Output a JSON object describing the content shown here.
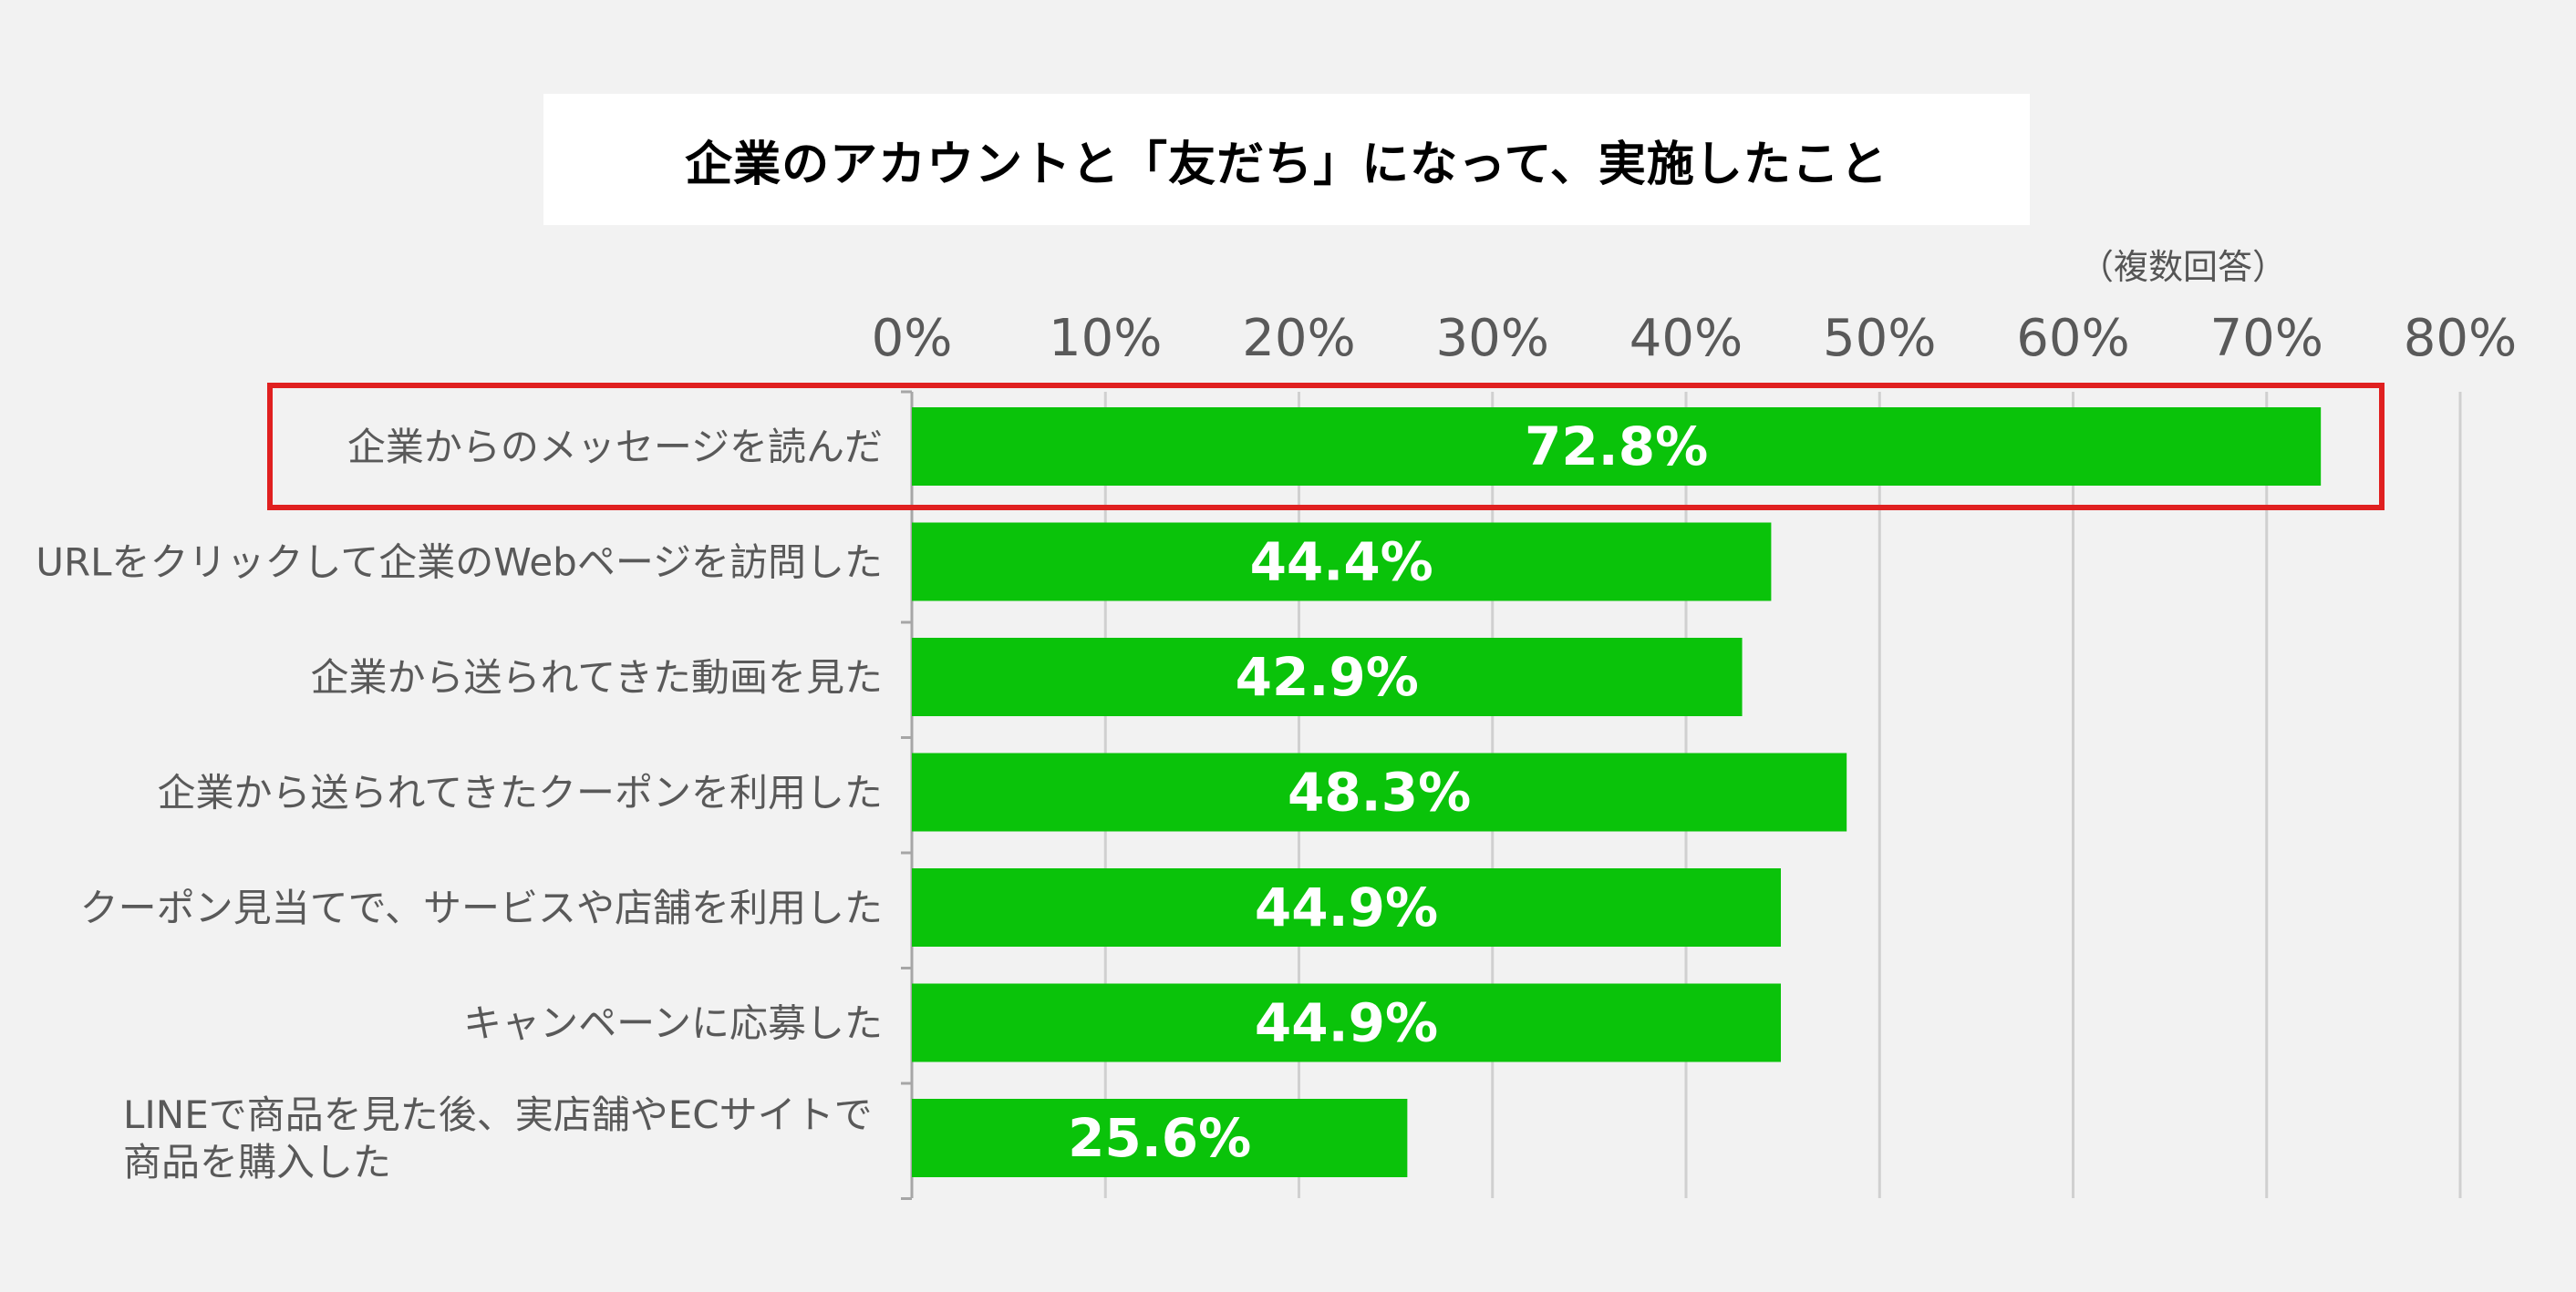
{
  "title": "企業のアカウントと「友だち」になって、実施したこと",
  "note": "（複数回答）",
  "colors": {
    "bar": "#0ac30a",
    "highlight_border": "#e02020",
    "grid": "#d0d0d0",
    "axis": "#a6a6a6",
    "background": "#f2f2f2"
  },
  "chart_data": {
    "type": "bar",
    "orientation": "horizontal",
    "categories": [
      [
        "企業からのメッセージを読んだ"
      ],
      [
        "URLをクリックして企業のWebページを訪問した"
      ],
      [
        "企業から送られてきた動画を見た"
      ],
      [
        "企業から送られてきたクーポンを利用した"
      ],
      [
        "クーポン見当てで、サービスや店舗を利用した"
      ],
      [
        "キャンペーンに応募した"
      ],
      [
        "LINEで商品を見た後、実店舗やECサイトで",
        "商品を購入した"
      ]
    ],
    "values": [
      72.8,
      44.4,
      42.9,
      48.3,
      44.9,
      44.9,
      25.6
    ],
    "value_labels": [
      "72.8%",
      "44.4%",
      "42.9%",
      "48.3%",
      "44.9%",
      "44.9%",
      "25.6%"
    ],
    "x_ticks": [
      "0%",
      "10%",
      "20%",
      "30%",
      "40%",
      "50%",
      "60%",
      "70%",
      "80%"
    ],
    "xlim": [
      0,
      80
    ],
    "grid": true,
    "highlighted_index": 0
  }
}
